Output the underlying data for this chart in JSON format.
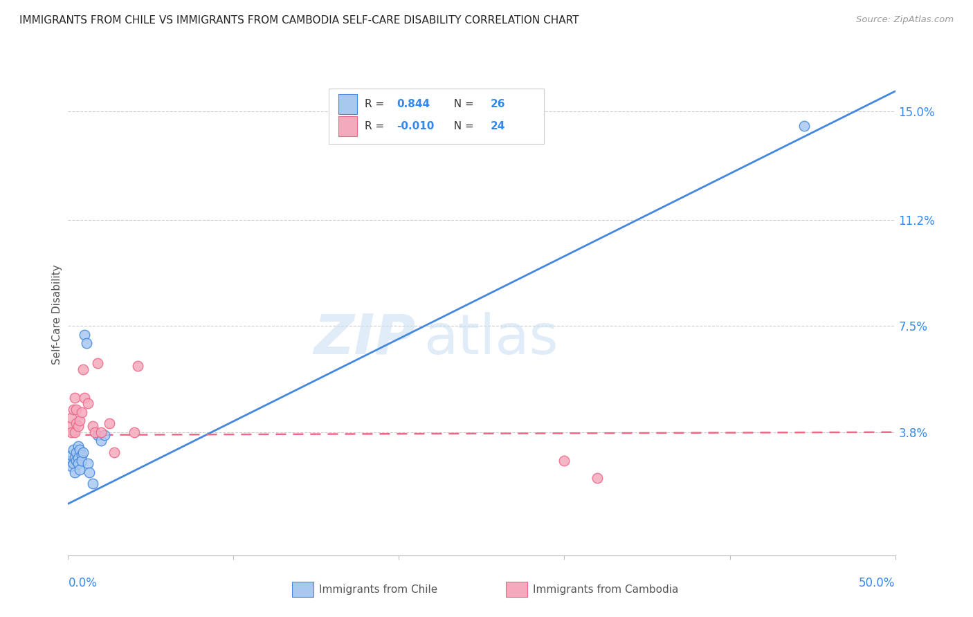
{
  "title": "IMMIGRANTS FROM CHILE VS IMMIGRANTS FROM CAMBODIA SELF-CARE DISABILITY CORRELATION CHART",
  "source": "Source: ZipAtlas.com",
  "ylabel": "Self-Care Disability",
  "yticks": [
    0.0,
    0.038,
    0.075,
    0.112,
    0.15
  ],
  "ytick_labels": [
    "",
    "3.8%",
    "7.5%",
    "11.2%",
    "15.0%"
  ],
  "xlim": [
    0.0,
    0.5
  ],
  "ylim": [
    -0.005,
    0.163
  ],
  "chile_R": "0.844",
  "chile_N": "26",
  "cambodia_R": "-0.010",
  "cambodia_N": "24",
  "chile_color": "#A8C8F0",
  "cambodia_color": "#F4AABC",
  "chile_line_color": "#4488DD",
  "cambodia_line_color": "#EE6688",
  "watermark_zip": "ZIP",
  "watermark_atlas": "atlas",
  "chile_x": [
    0.001,
    0.002,
    0.002,
    0.003,
    0.003,
    0.004,
    0.004,
    0.005,
    0.005,
    0.006,
    0.006,
    0.006,
    0.007,
    0.007,
    0.008,
    0.008,
    0.009,
    0.01,
    0.011,
    0.012,
    0.013,
    0.015,
    0.018,
    0.02,
    0.022,
    0.445
  ],
  "chile_y": [
    0.028,
    0.026,
    0.03,
    0.027,
    0.032,
    0.024,
    0.029,
    0.031,
    0.028,
    0.033,
    0.029,
    0.027,
    0.032,
    0.025,
    0.03,
    0.028,
    0.031,
    0.072,
    0.069,
    0.027,
    0.024,
    0.02,
    0.037,
    0.035,
    0.037,
    0.145
  ],
  "cambodia_x": [
    0.001,
    0.002,
    0.002,
    0.003,
    0.004,
    0.004,
    0.005,
    0.005,
    0.006,
    0.007,
    0.008,
    0.009,
    0.01,
    0.012,
    0.015,
    0.016,
    0.018,
    0.02,
    0.025,
    0.028,
    0.04,
    0.042,
    0.3,
    0.32
  ],
  "cambodia_y": [
    0.04,
    0.043,
    0.038,
    0.046,
    0.038,
    0.05,
    0.041,
    0.046,
    0.04,
    0.042,
    0.045,
    0.06,
    0.05,
    0.048,
    0.04,
    0.038,
    0.062,
    0.038,
    0.041,
    0.031,
    0.038,
    0.061,
    0.028,
    0.022
  ],
  "chile_trend_x": [
    0.0,
    0.5
  ],
  "chile_trend_y": [
    0.013,
    0.157
  ],
  "cambodia_trend_x": [
    0.0,
    0.5
  ],
  "cambodia_trend_y": [
    0.037,
    0.038
  ]
}
